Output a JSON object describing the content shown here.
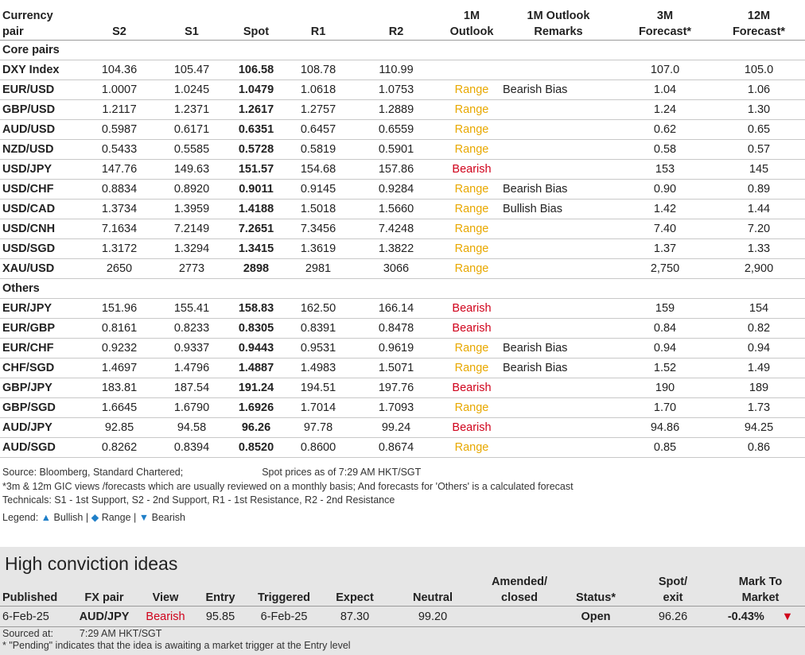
{
  "headers": {
    "pair": [
      "Currency",
      "pair"
    ],
    "s2": "S2",
    "s1": "S1",
    "spot": "Spot",
    "r1": "R1",
    "r2": "R2",
    "outlook": [
      "1M",
      "Outlook"
    ],
    "remarks": [
      "1M Outlook",
      "Remarks"
    ],
    "f3m": [
      "3M",
      "Forecast*"
    ],
    "f12m": [
      "12M",
      "Forecast*"
    ]
  },
  "sections": [
    {
      "title": "Core pairs",
      "rows": [
        {
          "pair": "DXY Index",
          "s2": "104.36",
          "s1": "105.47",
          "spot": "106.58",
          "r1": "108.78",
          "r2": "110.99",
          "outlook": "",
          "remark": "",
          "f3m": "107.0",
          "f12m": "105.0"
        },
        {
          "pair": "EUR/USD",
          "s2": "1.0007",
          "s1": "1.0245",
          "spot": "1.0479",
          "r1": "1.0618",
          "r2": "1.0753",
          "outlook": "Range",
          "remark": "Bearish Bias",
          "f3m": "1.04",
          "f12m": "1.06"
        },
        {
          "pair": "GBP/USD",
          "s2": "1.2117",
          "s1": "1.2371",
          "spot": "1.2617",
          "r1": "1.2757",
          "r2": "1.2889",
          "outlook": "Range",
          "remark": "",
          "f3m": "1.24",
          "f12m": "1.30"
        },
        {
          "pair": "AUD/USD",
          "s2": "0.5987",
          "s1": "0.6171",
          "spot": "0.6351",
          "r1": "0.6457",
          "r2": "0.6559",
          "outlook": "Range",
          "remark": "",
          "f3m": "0.62",
          "f12m": "0.65"
        },
        {
          "pair": "NZD/USD",
          "s2": "0.5433",
          "s1": "0.5585",
          "spot": "0.5728",
          "r1": "0.5819",
          "r2": "0.5901",
          "outlook": "Range",
          "remark": "",
          "f3m": "0.58",
          "f12m": "0.57"
        },
        {
          "pair": "USD/JPY",
          "s2": "147.76",
          "s1": "149.63",
          "spot": "151.57",
          "r1": "154.68",
          "r2": "157.86",
          "outlook": "Bearish",
          "remark": "",
          "f3m": "153",
          "f12m": "145"
        },
        {
          "pair": "USD/CHF",
          "s2": "0.8834",
          "s1": "0.8920",
          "spot": "0.9011",
          "r1": "0.9145",
          "r2": "0.9284",
          "outlook": "Range",
          "remark": "Bearish Bias",
          "f3m": "0.90",
          "f12m": "0.89"
        },
        {
          "pair": "USD/CAD",
          "s2": "1.3734",
          "s1": "1.3959",
          "spot": "1.4188",
          "r1": "1.5018",
          "r2": "1.5660",
          "outlook": "Range",
          "remark": " Bullish Bias",
          "f3m": "1.42",
          "f12m": "1.44"
        },
        {
          "pair": "USD/CNH",
          "s2": "7.1634",
          "s1": "7.2149",
          "spot": "7.2651",
          "r1": "7.3456",
          "r2": "7.4248",
          "outlook": "Range",
          "remark": "",
          "f3m": "7.40",
          "f12m": "7.20"
        },
        {
          "pair": "USD/SGD",
          "s2": "1.3172",
          "s1": "1.3294",
          "spot": "1.3415",
          "r1": "1.3619",
          "r2": "1.3822",
          "outlook": "Range",
          "remark": "",
          "f3m": "1.37",
          "f12m": "1.33"
        },
        {
          "pair": "XAU/USD",
          "s2": "2650",
          "s1": "2773",
          "spot": "2898",
          "r1": "2981",
          "r2": "3066",
          "outlook": "Range",
          "remark": "",
          "f3m": "2,750",
          "f12m": "2,900"
        }
      ]
    },
    {
      "title": "Others",
      "rows": [
        {
          "pair": "EUR/JPY",
          "s2": "151.96",
          "s1": "155.41",
          "spot": "158.83",
          "r1": "162.50",
          "r2": "166.14",
          "outlook": "Bearish",
          "remark": "",
          "f3m": "159",
          "f12m": "154"
        },
        {
          "pair": "EUR/GBP",
          "s2": "0.8161",
          "s1": "0.8233",
          "spot": "0.8305",
          "r1": "0.8391",
          "r2": "0.8478",
          "outlook": "Bearish",
          "remark": "",
          "f3m": "0.84",
          "f12m": "0.82"
        },
        {
          "pair": "EUR/CHF",
          "s2": "0.9232",
          "s1": "0.9337",
          "spot": "0.9443",
          "r1": "0.9531",
          "r2": "0.9619",
          "outlook": "Range",
          "remark": "Bearish Bias",
          "f3m": "0.94",
          "f12m": "0.94"
        },
        {
          "pair": "CHF/SGD",
          "s2": "1.4697",
          "s1": "1.4796",
          "spot": "1.4887",
          "r1": "1.4983",
          "r2": "1.5071",
          "outlook": "Range",
          "remark": "Bearish Bias",
          "f3m": "1.52",
          "f12m": "1.49"
        },
        {
          "pair": "GBP/JPY",
          "s2": "183.81",
          "s1": "187.54",
          "spot": "191.24",
          "r1": "194.51",
          "r2": "197.76",
          "outlook": "Bearish",
          "remark": "",
          "f3m": "190",
          "f12m": "189"
        },
        {
          "pair": "GBP/SGD",
          "s2": "1.6645",
          "s1": "1.6790",
          "spot": "1.6926",
          "r1": "1.7014",
          "r2": "1.7093",
          "outlook": "Range",
          "remark": "",
          "f3m": "1.70",
          "f12m": "1.73"
        },
        {
          "pair": "AUD/JPY",
          "s2": "92.85",
          "s1": "94.58",
          "spot": "96.26",
          "r1": "97.78",
          "r2": "99.24",
          "outlook": "Bearish",
          "remark": "",
          "f3m": "94.86",
          "f12m": "94.25"
        },
        {
          "pair": "AUD/SGD",
          "s2": "0.8262",
          "s1": "0.8394",
          "spot": "0.8520",
          "r1": "0.8600",
          "r2": "0.8674",
          "outlook": "Range",
          "remark": "",
          "f3m": "0.85",
          "f12m": "0.86"
        }
      ]
    }
  ],
  "notes": {
    "source": "Source: Bloomberg, Standard Chartered;",
    "spot_time": "Spot prices as of 7:29 AM HKT/SGT",
    "line2": "*3m & 12m GIC views /forecasts which are usually reviewed on a monthly basis; And forecasts for 'Others' is a calculated forecast",
    "line3": "Technicals: S1 - 1st Support, S2 - 2nd Support, R1 - 1st Resistance, R2 - 2nd Resistance",
    "legend_label": "Legend:",
    "legend_bullish": "Bullish",
    "legend_range": "Range",
    "legend_bearish": "Bearish",
    "sep": "|"
  },
  "hci": {
    "title": "High conviction ideas",
    "headers": {
      "published": "Published",
      "pair": "FX pair",
      "view": "View",
      "entry": "Entry",
      "triggered": "Triggered",
      "expect": "Expect",
      "neutral": "Neutral",
      "amended": [
        "Amended/",
        "closed"
      ],
      "status": "Status*",
      "spot": [
        "Spot/",
        "exit"
      ],
      "mtm": [
        "Mark To",
        "Market"
      ]
    },
    "row": {
      "published": "6-Feb-25",
      "pair": "AUD/JPY",
      "view": "Bearish",
      "entry": "95.85",
      "triggered": "6-Feb-25",
      "expect": "87.30",
      "neutral": "99.20",
      "amended": "",
      "status": "Open",
      "spot": "96.26",
      "mtm": "-0.43%"
    },
    "sourced_label": "Sourced at:",
    "sourced_time": "7:29 AM HKT/SGT",
    "pending_note": "* \"Pending\" indicates that the idea is awaiting a market trigger at the Entry level"
  },
  "colors": {
    "range": "#e8a800",
    "bearish": "#d0021b",
    "legend_icon": "#1f7fc8",
    "panel_bg": "#e6e6e6"
  }
}
